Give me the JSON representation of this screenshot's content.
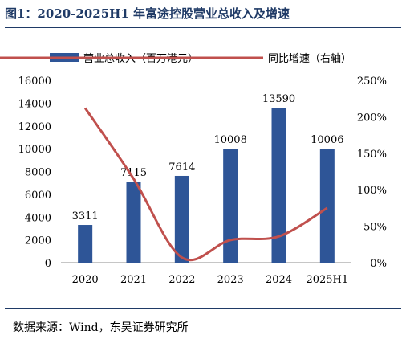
{
  "title": "图1：2020-2025H1 年富途控股营业总收入及增速",
  "source": "数据来源：Wind，东吴证券研究所",
  "chart_data": {
    "type": "bar",
    "categories": [
      "2020",
      "2021",
      "2022",
      "2023",
      "2024",
      "2025H1"
    ],
    "series": [
      {
        "name": "营业总收入（百万港元）",
        "type": "bar",
        "axis": "left",
        "color": "#2e5597",
        "values": [
          3311,
          7115,
          7614,
          10008,
          13590,
          10006
        ],
        "labels": [
          "3311",
          "7115",
          "7614",
          "10008",
          "13590",
          "10006"
        ]
      },
      {
        "name": "同比增速（右轴）",
        "type": "line",
        "axis": "right",
        "color": "#c0504d",
        "values": [
          212,
          115,
          7,
          31,
          36,
          75
        ]
      }
    ],
    "y_left": {
      "min": 0,
      "max": 16000,
      "step": 2000,
      "ticks": [
        "0",
        "2000",
        "4000",
        "6000",
        "8000",
        "10000",
        "12000",
        "14000",
        "16000"
      ]
    },
    "y_right": {
      "min": 0,
      "max": 250,
      "step": 50,
      "ticks": [
        "0%",
        "50%",
        "100%",
        "150%",
        "200%",
        "250%"
      ]
    },
    "legend_position": "top",
    "grid": false
  }
}
